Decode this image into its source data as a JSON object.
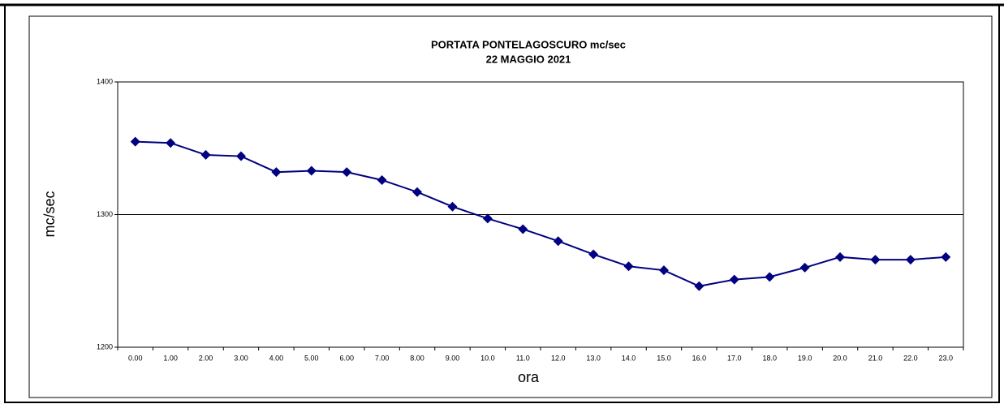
{
  "chart_data": {
    "type": "line",
    "title": "PORTATA PONTELAGOSCURO mc/sec",
    "subtitle": "22 MAGGIO 2021",
    "x_label": "ora",
    "y_label": "mc/sec",
    "categories": [
      "0.00",
      "1.00",
      "2.00",
      "3.00",
      "4.00",
      "5.00",
      "6.00",
      "7.00",
      "8.00",
      "9.00",
      "10.0",
      "11.0",
      "12.0",
      "13.0",
      "14.0",
      "15.0",
      "16.0",
      "17.0",
      "18.0",
      "19.0",
      "20.0",
      "21.0",
      "22.0",
      "23.0"
    ],
    "series": [
      {
        "color": "#000080",
        "values": [
          1355,
          1354,
          1345,
          1344,
          1332,
          1333,
          1332,
          1326,
          1317,
          1306,
          1297,
          1289,
          1280,
          1270,
          1261,
          1258,
          1246,
          1251,
          1253,
          1260,
          1268,
          1266,
          1266,
          1268
        ]
      }
    ],
    "ylim": [
      1200,
      1400
    ],
    "yticks": [
      1200,
      1300,
      1400
    ],
    "grid": true
  }
}
